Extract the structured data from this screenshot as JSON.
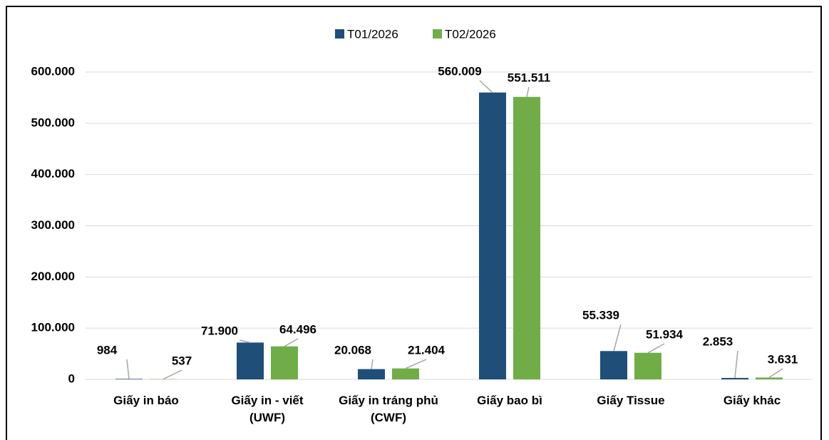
{
  "chart_data": {
    "type": "bar",
    "categories": [
      "Giấy in báo",
      "Giấy in - viết (UWF)",
      "Giấy in tráng phủ (CWF)",
      "Giấy bao bì",
      "Giấy Tissue",
      "Giấy khác"
    ],
    "series": [
      {
        "name": "T01/2026",
        "color": "#1f4e79",
        "values": [
          984,
          71900,
          20068,
          560009,
          55339,
          2853
        ],
        "value_labels": [
          "984",
          "71.900",
          "20.068",
          "560.009",
          "55.339",
          "2.853"
        ]
      },
      {
        "name": "T02/2026",
        "color": "#70ad47",
        "values": [
          537,
          64496,
          21404,
          551511,
          51934,
          3631
        ],
        "value_labels": [
          "537",
          "64.496",
          "21.404",
          "551.511",
          "51.934",
          "3.631"
        ]
      }
    ],
    "ylim": [
      0,
      600000
    ],
    "yticks": [
      0,
      {
        "value": 100000,
        "label": "100.000"
      },
      {
        "value": 200000,
        "label": "200.000"
      },
      {
        "value": 300000,
        "label": "300.000"
      },
      {
        "value": 400000,
        "label": "400.000"
      },
      {
        "value": 500000,
        "label": "500.000"
      },
      {
        "value": 600000,
        "label": "600.000"
      }
    ],
    "grid": true,
    "legend": "top"
  }
}
